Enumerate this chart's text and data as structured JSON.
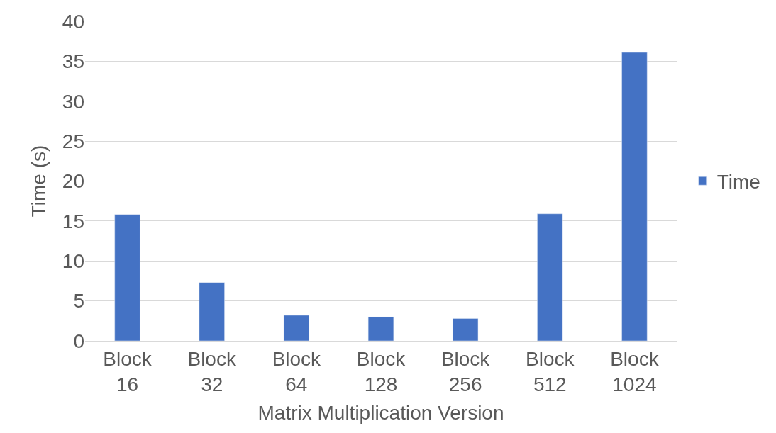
{
  "chart_data": {
    "type": "bar",
    "xlabel": "Matrix Multiplication Version",
    "ylabel": "Time (s)",
    "categories": [
      "Block 16",
      "Block 32",
      "Block 64",
      "Block 128",
      "Block 256",
      "Block 512",
      "Block 1024"
    ],
    "series": [
      {
        "name": "Time",
        "color": "#4472c4",
        "values": [
          15.8,
          7.3,
          3.2,
          3.0,
          2.8,
          15.9,
          36.1
        ]
      }
    ],
    "ylim": [
      0,
      40
    ],
    "yticks": [
      0,
      5,
      10,
      15,
      20,
      25,
      30,
      35,
      40
    ],
    "grid": "y",
    "legend": "right"
  }
}
